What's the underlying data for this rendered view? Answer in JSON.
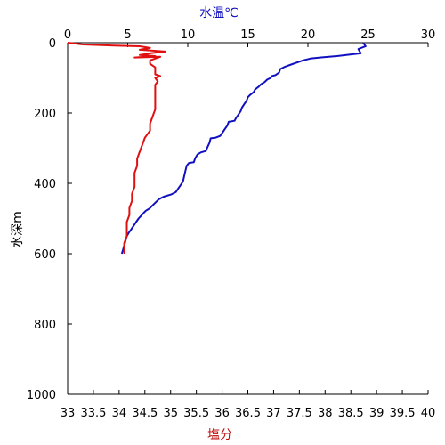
{
  "chart_data": {
    "type": "line",
    "top_axis": {
      "label": "水温℃",
      "min": 0,
      "max": 30,
      "ticks": [
        "0",
        "5",
        "10",
        "15",
        "20",
        "25",
        "30"
      ],
      "tick_values": [
        0,
        5,
        10,
        15,
        20,
        25,
        30
      ],
      "color": "#1010c0"
    },
    "bottom_axis": {
      "label": "塩分",
      "min": 33,
      "max": 40,
      "ticks": [
        "33",
        "33.5",
        "34",
        "34.5",
        "35",
        "35.5",
        "36",
        "36.5",
        "37",
        "37.5",
        "38",
        "38.5",
        "39",
        "39.5",
        "40"
      ],
      "tick_values": [
        33,
        33.5,
        34,
        34.5,
        35,
        35.5,
        36,
        36.5,
        37,
        37.5,
        38,
        38.5,
        39,
        39.5,
        40
      ],
      "color": "#c01010"
    },
    "left_axis": {
      "label": "水深m",
      "min": 0,
      "max": 1000,
      "inverted": true,
      "ticks": [
        "0",
        "200",
        "400",
        "600",
        "800",
        "1000"
      ],
      "tick_values": [
        0,
        200,
        400,
        600,
        800,
        1000
      ]
    },
    "series": [
      {
        "axis": "top",
        "color": "#1010c0",
        "points": [
          [
            24.6,
            0
          ],
          [
            24.8,
            10
          ],
          [
            24.2,
            18
          ],
          [
            24.4,
            30
          ],
          [
            23.2,
            35
          ],
          [
            22.4,
            38
          ],
          [
            21,
            42
          ],
          [
            20.2,
            45
          ],
          [
            19.6,
            50
          ],
          [
            19.2,
            55
          ],
          [
            18.6,
            62
          ],
          [
            18.1,
            68
          ],
          [
            17.7,
            75
          ],
          [
            17.6,
            85
          ],
          [
            17.3,
            92
          ],
          [
            17,
            95
          ],
          [
            16.9,
            100
          ],
          [
            16.6,
            105
          ],
          [
            16.4,
            112
          ],
          [
            16.1,
            118
          ],
          [
            15.9,
            125
          ],
          [
            15.6,
            133
          ],
          [
            15.5,
            140
          ],
          [
            15.2,
            148
          ],
          [
            15,
            155
          ],
          [
            14.9,
            165
          ],
          [
            14.7,
            175
          ],
          [
            14.5,
            185
          ],
          [
            14.4,
            195
          ],
          [
            14.2,
            205
          ],
          [
            14,
            215
          ],
          [
            13.9,
            222
          ],
          [
            13.4,
            225
          ],
          [
            13.3,
            235
          ],
          [
            13.1,
            245
          ],
          [
            12.9,
            255
          ],
          [
            12.7,
            265
          ],
          [
            12.3,
            270
          ],
          [
            11.9,
            272
          ],
          [
            11.8,
            285
          ],
          [
            11.6,
            300
          ],
          [
            11.5,
            308
          ],
          [
            11.1,
            312
          ],
          [
            10.8,
            318
          ],
          [
            10.6,
            330
          ],
          [
            10.5,
            340
          ],
          [
            10.1,
            342
          ],
          [
            9.9,
            350
          ],
          [
            9.8,
            365
          ],
          [
            9.7,
            380
          ],
          [
            9.6,
            395
          ],
          [
            9.4,
            405
          ],
          [
            9.2,
            415
          ],
          [
            9,
            425
          ],
          [
            8.6,
            432
          ],
          [
            8,
            438
          ],
          [
            7.6,
            445
          ],
          [
            7.3,
            455
          ],
          [
            7,
            465
          ],
          [
            6.8,
            472
          ],
          [
            6.5,
            478
          ],
          [
            6.3,
            485
          ],
          [
            6.1,
            493
          ],
          [
            5.9,
            500
          ],
          [
            5.7,
            510
          ],
          [
            5.5,
            520
          ],
          [
            5.3,
            530
          ],
          [
            5.1,
            540
          ],
          [
            4.9,
            552
          ],
          [
            4.8,
            565
          ],
          [
            4.7,
            578
          ],
          [
            4.6,
            590
          ],
          [
            4.5,
            600
          ]
        ]
      },
      {
        "axis": "bottom",
        "color": "#e01010",
        "points": [
          [
            33,
            0
          ],
          [
            33.3,
            5
          ],
          [
            33.9,
            8
          ],
          [
            34.4,
            10
          ],
          [
            34.6,
            15
          ],
          [
            34.4,
            20
          ],
          [
            34.9,
            25
          ],
          [
            34.6,
            30
          ],
          [
            34.4,
            35
          ],
          [
            34.7,
            38
          ],
          [
            34.3,
            42
          ],
          [
            34.8,
            40
          ],
          [
            34.6,
            50
          ],
          [
            34.6,
            60
          ],
          [
            34.7,
            70
          ],
          [
            34.7,
            80
          ],
          [
            34.7,
            90
          ],
          [
            34.8,
            95
          ],
          [
            34.7,
            100
          ],
          [
            34.75,
            110
          ],
          [
            34.7,
            120
          ],
          [
            34.7,
            135
          ],
          [
            34.7,
            150
          ],
          [
            34.7,
            170
          ],
          [
            34.7,
            190
          ],
          [
            34.65,
            210
          ],
          [
            34.6,
            230
          ],
          [
            34.6,
            250
          ],
          [
            34.5,
            270
          ],
          [
            34.45,
            290
          ],
          [
            34.4,
            310
          ],
          [
            34.35,
            330
          ],
          [
            34.35,
            350
          ],
          [
            34.3,
            370
          ],
          [
            34.3,
            390
          ],
          [
            34.3,
            410
          ],
          [
            34.25,
            430
          ],
          [
            34.25,
            450
          ],
          [
            34.2,
            470
          ],
          [
            34.2,
            490
          ],
          [
            34.15,
            510
          ],
          [
            34.15,
            530
          ],
          [
            34.15,
            550
          ],
          [
            34.1,
            570
          ],
          [
            34.1,
            585
          ],
          [
            34.1,
            600
          ]
        ]
      }
    ]
  }
}
